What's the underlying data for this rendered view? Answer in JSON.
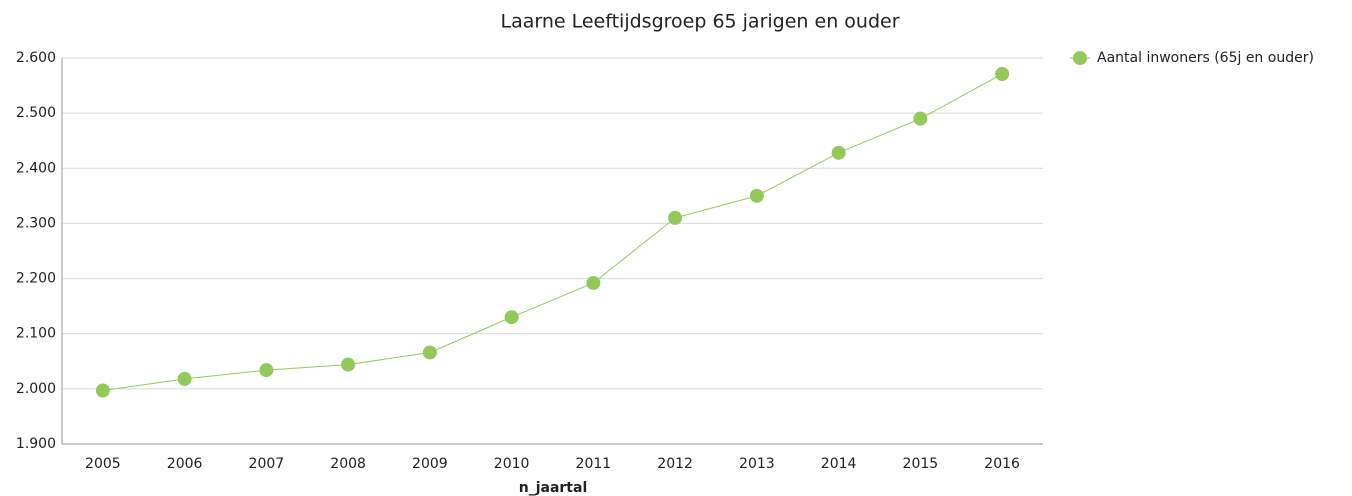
{
  "chart_data": {
    "type": "line",
    "title": "Laarne  Leeftijdsgroep 65 jarigen en ouder",
    "x_label": "n_jaartal",
    "categories": [
      "2005",
      "2006",
      "2007",
      "2008",
      "2009",
      "2010",
      "2011",
      "2012",
      "2013",
      "2014",
      "2015",
      "2016"
    ],
    "series": [
      {
        "name": "Aantal inwoners (65j en ouder)",
        "color": "#92c95a",
        "values": [
          1997,
          2018,
          2034,
          2044,
          2066,
          2130,
          2192,
          2310,
          2350,
          2428,
          2490,
          2571
        ]
      }
    ],
    "ylim": [
      1900,
      2600
    ],
    "yticks": [
      {
        "value": 1900,
        "label": "1.900"
      },
      {
        "value": 2000,
        "label": "2.000"
      },
      {
        "value": 2100,
        "label": "2.100"
      },
      {
        "value": 2200,
        "label": "2.200"
      },
      {
        "value": 2300,
        "label": "2.300"
      },
      {
        "value": 2400,
        "label": "2.400"
      },
      {
        "value": 2500,
        "label": "2.500"
      },
      {
        "value": 2600,
        "label": "2.600"
      }
    ],
    "grid": true,
    "legend": "top-right"
  }
}
